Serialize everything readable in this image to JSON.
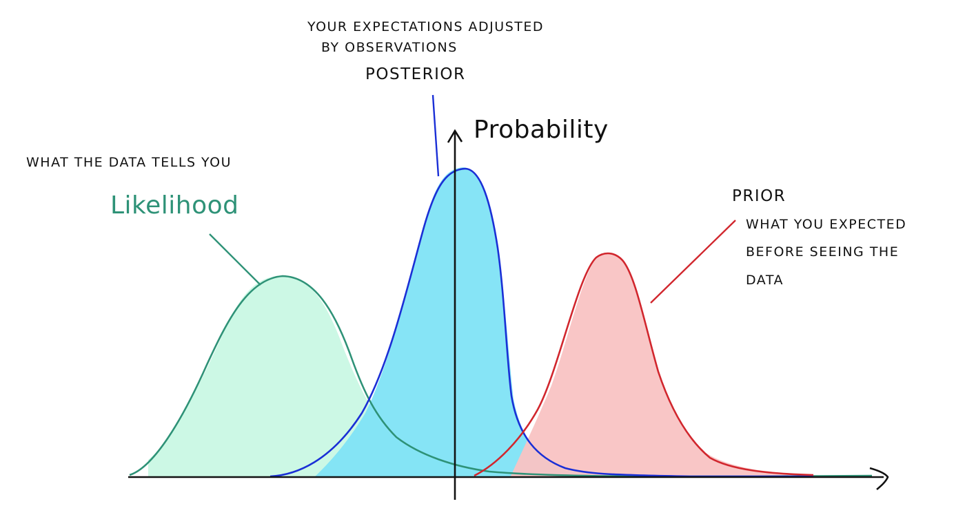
{
  "axis": {
    "y_label": "Probability"
  },
  "posterior": {
    "name": "POSTERIOR",
    "description_line1": "YOUR EXPECTATIONS ADJUSTED",
    "description_line2": "BY OBSERVATIONS",
    "color": "#1a2fd6",
    "fill": "#7fe3f6"
  },
  "likelihood": {
    "name": "Likelihood",
    "description": "WHAT THE DATA TELLS YOU",
    "color": "#2e9277",
    "fill": "#c9f8e4"
  },
  "prior": {
    "name": "PRIOR",
    "description_line1": "WHAT YOU EXPECTED",
    "description_line2": "BEFORE SEEING THE",
    "description_line3": "DATA",
    "color": "#d1262d",
    "fill": "#f9c3c3"
  },
  "colors": {
    "axis": "#111111",
    "text": "#111111"
  }
}
